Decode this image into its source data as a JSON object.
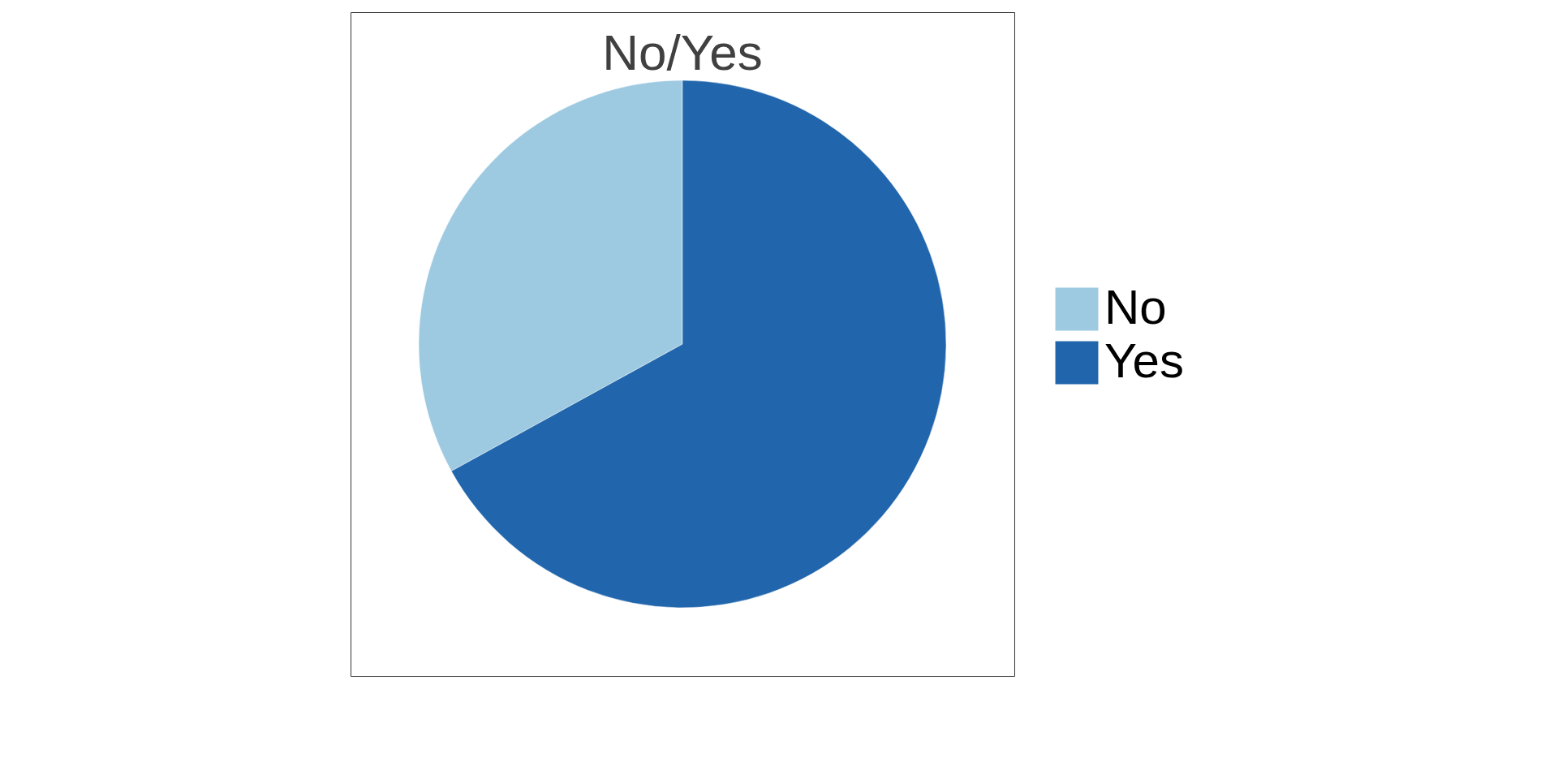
{
  "chart_data": {
    "type": "pie",
    "title": "No/Yes",
    "categories": [
      "No",
      "Yes"
    ],
    "values": [
      33,
      67
    ],
    "colors": [
      "#9ecae1",
      "#2166ac"
    ],
    "legend": "right"
  }
}
